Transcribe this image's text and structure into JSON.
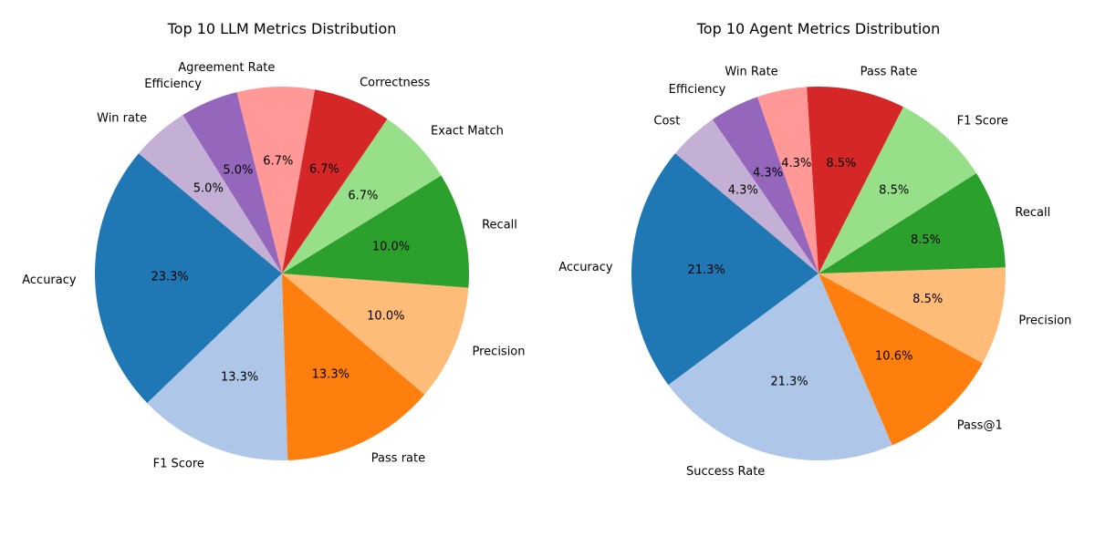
{
  "chart_data": [
    {
      "type": "pie",
      "title": "Top 10 LLM Metrics Distribution",
      "labels": [
        "Accuracy",
        "F1 Score",
        "Pass rate",
        "Precision",
        "Recall",
        "Exact Match",
        "Correctness",
        "Agreement Rate",
        "Efficiency",
        "Win rate"
      ],
      "values": [
        23.3,
        13.3,
        13.3,
        10.0,
        10.0,
        6.7,
        6.7,
        6.7,
        5.0,
        5.0
      ],
      "value_labels": [
        "23.3%",
        "13.3%",
        "13.3%",
        "10.0%",
        "10.0%",
        "6.7%",
        "6.7%",
        "6.7%",
        "5.0%",
        "5.0%"
      ],
      "colors": [
        "#1f77b4",
        "#aec7e8",
        "#ff7f0e",
        "#ffbb78",
        "#2ca02c",
        "#98df8a",
        "#d62728",
        "#ff9896",
        "#9467bd",
        "#c5b0d5"
      ],
      "start_angle_deg": 140,
      "direction": "counterclockwise",
      "legend": "none"
    },
    {
      "type": "pie",
      "title": "Top 10 Agent Metrics Distribution",
      "labels": [
        "Accuracy",
        "Success Rate",
        "Pass@1",
        "Precision",
        "Recall",
        "F1 Score",
        "Pass Rate",
        "Win Rate",
        "Efficiency",
        "Cost"
      ],
      "values": [
        21.3,
        21.3,
        10.6,
        8.5,
        8.5,
        8.5,
        8.5,
        4.3,
        4.3,
        4.3
      ],
      "value_labels": [
        "21.3%",
        "21.3%",
        "10.6%",
        "8.5%",
        "8.5%",
        "8.5%",
        "8.5%",
        "4.3%",
        "4.3%",
        "4.3%"
      ],
      "colors": [
        "#1f77b4",
        "#aec7e8",
        "#ff7f0e",
        "#ffbb78",
        "#2ca02c",
        "#98df8a",
        "#d62728",
        "#ff9896",
        "#9467bd",
        "#c5b0d5"
      ],
      "start_angle_deg": 140,
      "direction": "counterclockwise",
      "legend": "none"
    }
  ]
}
